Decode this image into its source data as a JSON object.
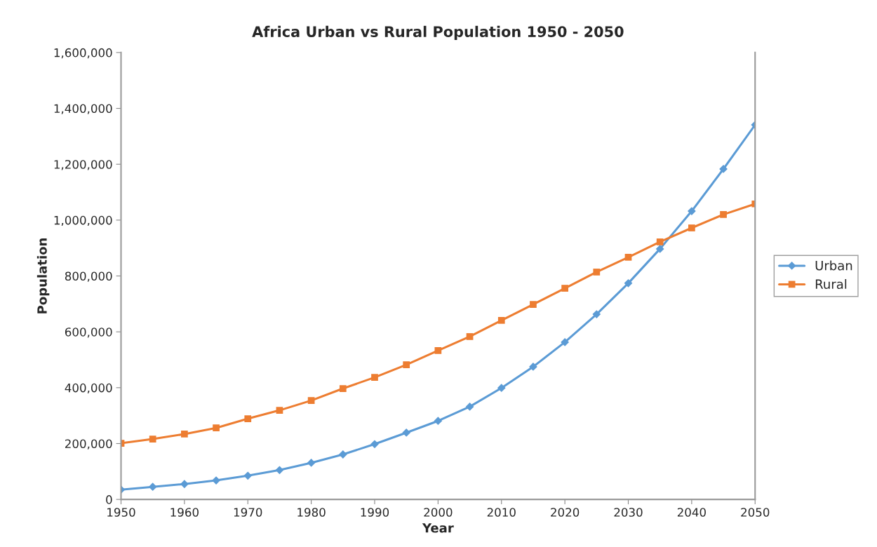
{
  "chart_data": {
    "type": "line",
    "title": "Africa Urban vs Rural Population 1950 - 2050",
    "xlabel": "Year",
    "ylabel": "Population",
    "x": [
      1950,
      1955,
      1960,
      1965,
      1970,
      1975,
      1980,
      1985,
      1990,
      1995,
      2000,
      2005,
      2010,
      2015,
      2020,
      2025,
      2030,
      2035,
      2040,
      2045,
      2050
    ],
    "series": [
      {
        "name": "Urban",
        "color": "#5b9bd5",
        "marker": "diamond",
        "values": [
          35000,
          45000,
          55000,
          68000,
          85000,
          105000,
          131000,
          161000,
          198000,
          239000,
          281000,
          332000,
          399000,
          475000,
          563000,
          663000,
          774000,
          897000,
          1032000,
          1183000,
          1341000
        ]
      },
      {
        "name": "Rural",
        "color": "#ed7d31",
        "marker": "square",
        "values": [
          201000,
          216000,
          234000,
          256000,
          289000,
          319000,
          354000,
          397000,
          437000,
          482000,
          533000,
          583000,
          641000,
          698000,
          756000,
          814000,
          867000,
          922000,
          972000,
          1020000,
          1058000
        ]
      }
    ],
    "xlim": [
      1950,
      2050
    ],
    "xticks": [
      1950,
      1960,
      1970,
      1980,
      1990,
      2000,
      2010,
      2020,
      2030,
      2040,
      2050
    ],
    "ylim": [
      0,
      1600000
    ],
    "yticks": [
      {
        "value": 0,
        "label": "0"
      },
      {
        "value": 200000,
        "label": "200,000"
      },
      {
        "value": 400000,
        "label": "400,000"
      },
      {
        "value": 600000,
        "label": "600,000"
      },
      {
        "value": 800000,
        "label": "800,000"
      },
      {
        "value": 1000000,
        "label": "1,000,000"
      },
      {
        "value": 1200000,
        "label": "1,200,000"
      },
      {
        "value": 1400000,
        "label": "1,400,000"
      },
      {
        "value": 1600000,
        "label": "1,600,000"
      }
    ],
    "grid": false,
    "legend": "right",
    "line_style": "solid"
  }
}
